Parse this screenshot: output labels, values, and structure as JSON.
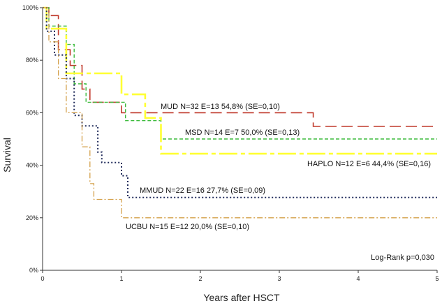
{
  "chart_data": {
    "type": "line",
    "subtype": "kaplan-meier",
    "title": "",
    "xlabel": "Years after HSCT",
    "ylabel": "Survival",
    "xlim": [
      0,
      5
    ],
    "ylim": [
      0,
      1
    ],
    "xticks": [
      "0",
      "1",
      "2",
      "3",
      "4",
      "5"
    ],
    "yticks": [
      "0%",
      "20%",
      "40%",
      "60%",
      "80%",
      "100%"
    ],
    "grid": false,
    "legend": "inline labels",
    "series": [
      {
        "name": "MUD",
        "label": "MUD N=32 E=13 54,8% (SE=0,10)",
        "color": "#c0392b",
        "dash": "long",
        "x": [
          0,
          0.08,
          0.2,
          0.35,
          0.5,
          0.6,
          1.0,
          3.43,
          5.0
        ],
        "y": [
          1.0,
          0.97,
          0.84,
          0.78,
          0.69,
          0.64,
          0.6,
          0.548,
          0.548
        ]
      },
      {
        "name": "MSD",
        "label": "MSD N=14 E=7 50,0% (SE=0,13)",
        "color": "#3dbb3d",
        "dash": "short",
        "x": [
          0,
          0.08,
          0.3,
          0.4,
          0.55,
          1.05,
          1.5,
          5.0
        ],
        "y": [
          1.0,
          0.93,
          0.86,
          0.71,
          0.64,
          0.57,
          0.5,
          0.5
        ]
      },
      {
        "name": "HAPLO",
        "label": "HAPLO N=12 E=6 44,4% (SE=0,16)",
        "color": "#ffff33",
        "dash": "long-short",
        "x": [
          0,
          0.05,
          0.3,
          1.0,
          1.3,
          1.5,
          5.0
        ],
        "y": [
          1.0,
          0.92,
          0.75,
          0.67,
          0.58,
          0.444,
          0.444
        ]
      },
      {
        "name": "MMUD",
        "label": "MMUD N=22 E=16 27,7% (SE=0,09)",
        "color": "#1f2a5a",
        "dash": "dot",
        "x": [
          0,
          0.05,
          0.15,
          0.3,
          0.4,
          0.5,
          0.7,
          0.75,
          1.0,
          1.08,
          5.0
        ],
        "y": [
          1.0,
          0.91,
          0.82,
          0.73,
          0.59,
          0.55,
          0.45,
          0.41,
          0.36,
          0.277,
          0.277
        ]
      },
      {
        "name": "UCBU",
        "label": "UCBU N=15 E=12 20,0% (SE=0,10)",
        "color": "#d4a04a",
        "dash": "dash-dot",
        "x": [
          0,
          0.08,
          0.2,
          0.3,
          0.5,
          0.6,
          0.65,
          1.0,
          5.0
        ],
        "y": [
          1.0,
          0.87,
          0.73,
          0.6,
          0.47,
          0.33,
          0.27,
          0.2,
          0.2
        ]
      }
    ],
    "annotations": [
      "Log-Rank p=0,030"
    ]
  }
}
